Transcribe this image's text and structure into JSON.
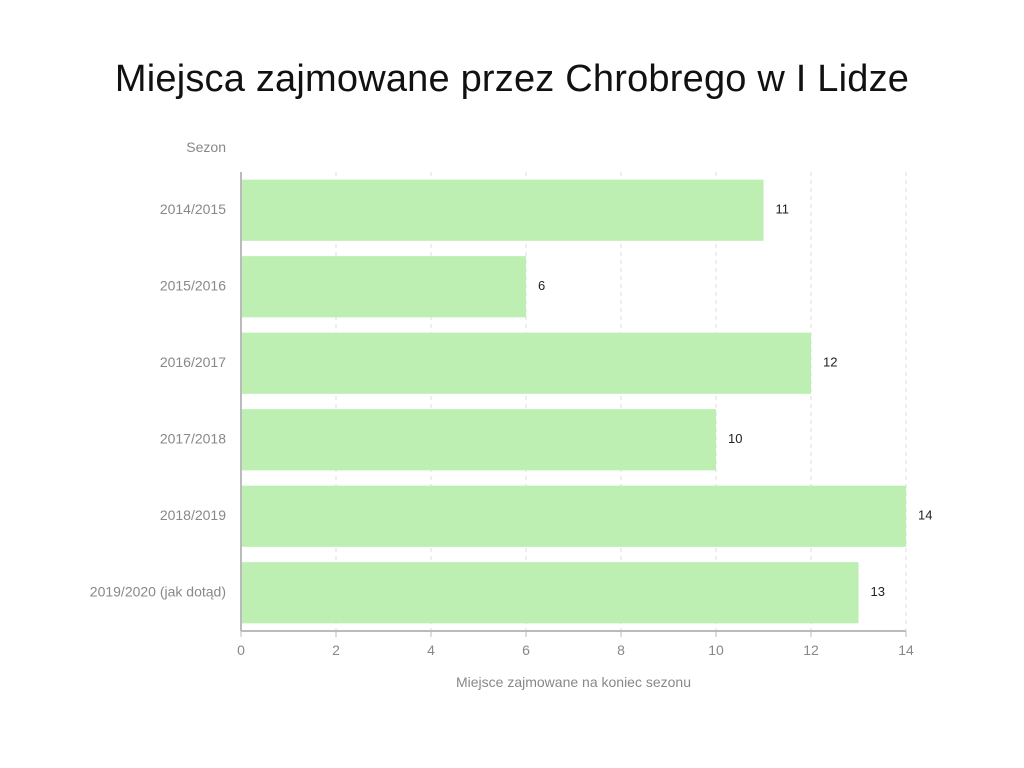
{
  "chart_data": {
    "type": "bar",
    "orientation": "horizontal",
    "title": "Miejsca zajmowane przez Chrobrego w I Lidze",
    "xlabel": "Miejsce zajmowane na koniec sezonu",
    "ylabel": "Sezon",
    "categories": [
      "2014/2015",
      "2015/2016",
      "2016/2017",
      "2017/2018",
      "2018/2019",
      "2019/2020 (jak dotąd)"
    ],
    "values": [
      11,
      6,
      12,
      10,
      14,
      13
    ],
    "xlim": [
      0,
      14
    ],
    "xticks": [
      0,
      2,
      4,
      6,
      8,
      10,
      12,
      14
    ],
    "grid": true,
    "legend": "none",
    "bar_color": "#bdeeb2",
    "axis_color": "#bbbbbb",
    "grid_color": "#dddddd"
  }
}
